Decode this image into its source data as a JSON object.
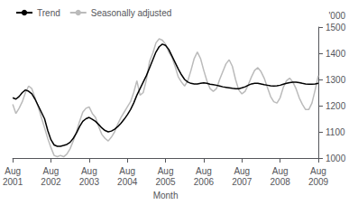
{
  "chart_data": {
    "type": "line",
    "xlabel": "Month",
    "ylabel": "'000",
    "categories": [
      "Aug\n2001",
      null,
      null,
      null,
      null,
      null,
      null,
      null,
      null,
      null,
      null,
      null,
      "Aug\n2002",
      null,
      null,
      null,
      null,
      null,
      null,
      null,
      null,
      null,
      null,
      null,
      "Aug\n2003",
      null,
      null,
      null,
      null,
      null,
      null,
      null,
      null,
      null,
      null,
      null,
      "Aug\n2004",
      null,
      null,
      null,
      null,
      null,
      null,
      null,
      null,
      null,
      null,
      null,
      "Aug\n2005",
      null,
      null,
      null,
      null,
      null,
      null,
      null,
      null,
      null,
      null,
      null,
      "Aug\n2006",
      null,
      null,
      null,
      null,
      null,
      null,
      null,
      null,
      null,
      null,
      null,
      "Aug\n2007",
      null,
      null,
      null,
      null,
      null,
      null,
      null,
      null,
      null,
      null,
      null,
      "Aug\n2008",
      null,
      null,
      null,
      null,
      null,
      null,
      null,
      null,
      null,
      null,
      null,
      "Aug\n2009"
    ],
    "series": [
      {
        "name": "Seasonally adjusted",
        "color": "#bbbbbb",
        "values": [
          1205,
          1170,
          1190,
          1215,
          1250,
          1275,
          1265,
          1230,
          1195,
          1155,
          1115,
          1075,
          1040,
          1010,
          1005,
          1010,
          1005,
          1015,
          1035,
          1065,
          1100,
          1140,
          1175,
          1190,
          1195,
          1170,
          1155,
          1120,
          1090,
          1075,
          1065,
          1080,
          1100,
          1130,
          1155,
          1175,
          1195,
          1215,
          1250,
          1295,
          1240,
          1250,
          1300,
          1370,
          1400,
          1440,
          1455,
          1450,
          1435,
          1405,
          1385,
          1350,
          1310,
          1290,
          1275,
          1295,
          1335,
          1380,
          1405,
          1380,
          1335,
          1295,
          1265,
          1255,
          1265,
          1300,
          1330,
          1360,
          1375,
          1350,
          1300,
          1260,
          1245,
          1255,
          1280,
          1310,
          1335,
          1345,
          1330,
          1305,
          1270,
          1235,
          1215,
          1210,
          1230,
          1270,
          1295,
          1305,
          1290,
          1265,
          1230,
          1205,
          1185,
          1185,
          1210,
          1260,
          1315
        ]
      },
      {
        "name": "Trend",
        "color": "#000000",
        "values": [
          1230,
          1225,
          1235,
          1250,
          1260,
          1255,
          1245,
          1225,
          1200,
          1175,
          1150,
          1105,
          1070,
          1050,
          1045,
          1045,
          1048,
          1052,
          1060,
          1075,
          1095,
          1120,
          1140,
          1150,
          1155,
          1148,
          1140,
          1128,
          1115,
          1105,
          1100,
          1103,
          1110,
          1120,
          1133,
          1148,
          1165,
          1185,
          1210,
          1240,
          1265,
          1290,
          1315,
          1345,
          1375,
          1405,
          1425,
          1435,
          1430,
          1415,
          1390,
          1365,
          1340,
          1318,
          1300,
          1290,
          1285,
          1283,
          1283,
          1285,
          1287,
          1285,
          1282,
          1280,
          1278,
          1275,
          1272,
          1270,
          1268,
          1266,
          1265,
          1265,
          1268,
          1272,
          1278,
          1283,
          1285,
          1285,
          1283,
          1280,
          1278,
          1276,
          1275,
          1276,
          1278,
          1282,
          1285,
          1288,
          1290,
          1290,
          1288,
          1285,
          1283,
          1282,
          1282,
          1283,
          1285
        ]
      }
    ],
    "ylim": [
      1000,
      1500
    ],
    "yticks": [
      1000,
      1100,
      1200,
      1300,
      1400,
      1500
    ],
    "grid": false,
    "legend": "upper left"
  }
}
